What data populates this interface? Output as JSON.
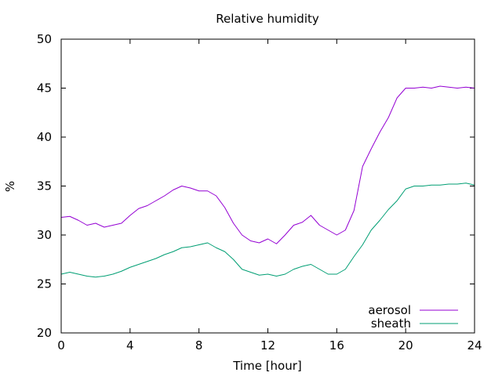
{
  "chart_data": {
    "type": "line",
    "title": "Relative humidity",
    "xlabel": "Time [hour]",
    "ylabel": "%",
    "xlim": [
      0,
      24
    ],
    "ylim": [
      20,
      50
    ],
    "x_ticks": [
      0,
      4,
      8,
      12,
      16,
      20,
      24
    ],
    "y_ticks": [
      20,
      25,
      30,
      35,
      40,
      45,
      50
    ],
    "grid": false,
    "legend_position": "bottom-right",
    "series": [
      {
        "name": "aerosol",
        "color": "#9400d3",
        "x": [
          0,
          0.5,
          1,
          1.5,
          2,
          2.5,
          3,
          3.5,
          4,
          4.5,
          5,
          5.5,
          6,
          6.5,
          7,
          7.5,
          8,
          8.5,
          9,
          9.5,
          10,
          10.5,
          11,
          11.5,
          12,
          12.5,
          13,
          13.5,
          14,
          14.5,
          15,
          15.5,
          16,
          16.5,
          17,
          17.5,
          18,
          18.5,
          19,
          19.5,
          20,
          20.5,
          21,
          21.5,
          22,
          22.5,
          23,
          23.5,
          24
        ],
        "values": [
          31.8,
          31.9,
          31.5,
          31.0,
          31.2,
          30.8,
          31.0,
          31.2,
          32.0,
          32.7,
          33.0,
          33.5,
          34.0,
          34.6,
          35.0,
          34.8,
          34.5,
          34.5,
          34.0,
          32.8,
          31.2,
          30.0,
          29.4,
          29.2,
          29.6,
          29.1,
          30.0,
          31.0,
          31.3,
          32.0,
          31.0,
          30.5,
          30.0,
          30.5,
          32.5,
          37.0,
          38.8,
          40.5,
          42.0,
          44.0,
          45.0,
          45.0,
          45.1,
          45.0,
          45.2,
          45.1,
          45.0,
          45.1,
          45.0
        ]
      },
      {
        "name": "sheath",
        "color": "#009e73",
        "x": [
          0,
          0.5,
          1,
          1.5,
          2,
          2.5,
          3,
          3.5,
          4,
          4.5,
          5,
          5.5,
          6,
          6.5,
          7,
          7.5,
          8,
          8.5,
          9,
          9.5,
          10,
          10.5,
          11,
          11.5,
          12,
          12.5,
          13,
          13.5,
          14,
          14.5,
          15,
          15.5,
          16,
          16.5,
          17,
          17.5,
          18,
          18.5,
          19,
          19.5,
          20,
          20.5,
          21,
          21.5,
          22,
          22.5,
          23,
          23.5,
          24
        ],
        "values": [
          26.0,
          26.2,
          26.0,
          25.8,
          25.7,
          25.8,
          26.0,
          26.3,
          26.7,
          27.0,
          27.3,
          27.6,
          28.0,
          28.3,
          28.7,
          28.8,
          29.0,
          29.2,
          28.7,
          28.3,
          27.5,
          26.5,
          26.2,
          25.9,
          26.0,
          25.8,
          26.0,
          26.5,
          26.8,
          27.0,
          26.5,
          26.0,
          26.0,
          26.5,
          27.8,
          29.0,
          30.5,
          31.5,
          32.6,
          33.5,
          34.7,
          35.0,
          35.0,
          35.1,
          35.1,
          35.2,
          35.2,
          35.3,
          35.1
        ]
      }
    ]
  }
}
